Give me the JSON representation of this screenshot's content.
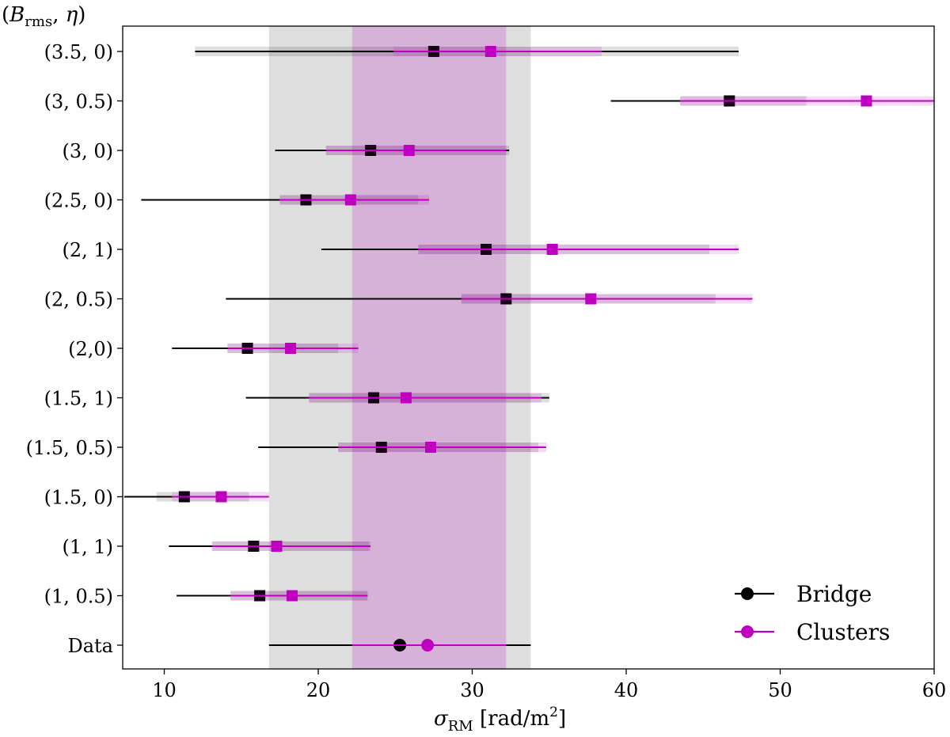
{
  "chart_data": {
    "type": "errorbar",
    "title": "",
    "ylabel": "(B_rms, η)",
    "xlabel": "σ_RM [rad/m²]",
    "xlim": [
      7,
      60
    ],
    "xticks": [
      10,
      20,
      30,
      40,
      50,
      60
    ],
    "categories": [
      "(3.5, 0)",
      "(3, 0.5)",
      "(3, 0)",
      "(2.5, 0)",
      "(2, 1)",
      "(2, 0.5)",
      "(2,0)",
      "(1.5, 1)",
      "(1.5, 0.5)",
      "(1.5, 0)",
      "(1, 1)",
      "(1, 0.5)",
      "Data"
    ],
    "data_bands": {
      "bridge": [
        16.8,
        33.8
      ],
      "clusters": [
        22.2,
        32.2
      ]
    },
    "series": [
      {
        "name": "Bridge",
        "color": "#000000",
        "values": [
          27.5,
          46.7,
          23.4,
          19.2,
          30.9,
          32.2,
          15.4,
          23.6,
          24.1,
          11.3,
          15.8,
          16.2,
          25.3
        ],
        "err_low": [
          12.0,
          39.0,
          17.2,
          8.5,
          20.2,
          14.0,
          10.5,
          15.3,
          16.1,
          7.4,
          10.3,
          10.8,
          16.8
        ],
        "err_high": [
          47.3,
          51.7,
          32.4,
          26.5,
          45.4,
          45.8,
          21.3,
          35.0,
          34.3,
          15.5,
          23.3,
          23.2,
          33.8
        ],
        "band_low": [
          12.0,
          43.5,
          20.5,
          17.5,
          26.5,
          29.3,
          14.1,
          19.4,
          21.3,
          9.5,
          13.1,
          14.3
        ],
        "band_high": [
          47.3,
          51.7,
          32.4,
          26.5,
          45.4,
          45.8,
          21.3,
          35.0,
          34.3,
          15.5,
          23.3,
          23.2
        ]
      },
      {
        "name": "Clusters",
        "color": "#c000c0",
        "values": [
          31.2,
          55.6,
          25.9,
          22.1,
          35.2,
          37.7,
          18.2,
          25.7,
          27.3,
          13.7,
          17.3,
          18.3,
          27.1
        ],
        "err_low": [
          24.9,
          43.5,
          20.5,
          17.5,
          26.5,
          29.3,
          14.1,
          19.4,
          21.3,
          10.5,
          13.1,
          14.3,
          22.2
        ],
        "err_high": [
          38.4,
          60.0,
          32.2,
          27.2,
          47.3,
          48.2,
          22.6,
          34.5,
          34.8,
          16.8,
          23.4,
          23.2,
          32.2
        ],
        "band_low": [
          24.9,
          43.5,
          20.5,
          17.5,
          26.5,
          29.3,
          14.1,
          19.4,
          21.3,
          10.5,
          13.1,
          14.3
        ],
        "band_high": [
          38.4,
          60.0,
          32.2,
          27.2,
          47.3,
          48.2,
          22.6,
          34.5,
          34.8,
          16.8,
          23.4,
          23.2
        ]
      }
    ],
    "legend": {
      "position": "bottom-right",
      "entries": [
        "Bridge",
        "Clusters"
      ]
    }
  }
}
